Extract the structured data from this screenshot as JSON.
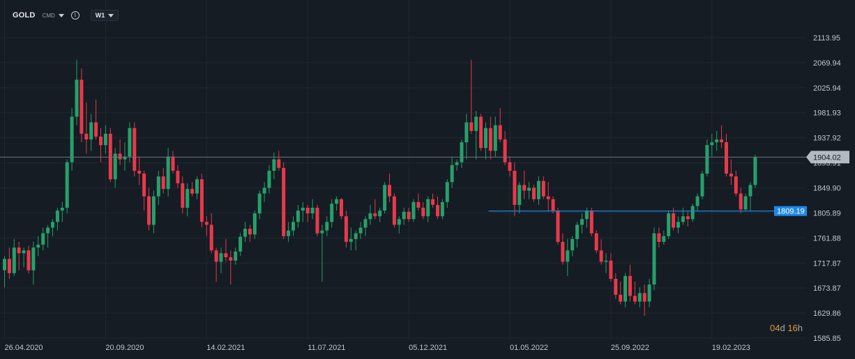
{
  "toolbar": {
    "symbol": "GOLD",
    "source": "CMD",
    "info_icon": "info-icon",
    "timeframe": "W1",
    "dropdown_icon": "chevron-down-icon"
  },
  "countdown": {
    "days": "04",
    "days_unit": "d",
    "hours": "16",
    "hours_unit": "h"
  },
  "colors": {
    "background": "#151c24",
    "grid": "#1f2831",
    "up": "#26a06a",
    "down": "#e8394a",
    "price_line": "#6d7480",
    "level_line": "#1e88e5",
    "label_bg": "#1e88e5",
    "price_tag_bg": "#b4bac2"
  },
  "chart_data": {
    "type": "candlestick",
    "title": "",
    "xlabel": "",
    "ylabel": "",
    "grid": true,
    "ylim": [
      1585.85,
      2113.95
    ],
    "y_ticks": [
      "2113.95",
      "2069.94",
      "2025.94",
      "1981.93",
      "1937.92",
      "1893.91",
      "1849.90",
      "1805.89",
      "1761.88",
      "1717.87",
      "1673.87",
      "1629.86",
      "1585.85"
    ],
    "x_ticks": [
      "26.04.2020",
      "20.09.2020",
      "14.02.2021",
      "11.07.2021",
      "05.12.2021",
      "01.05.2022",
      "25.09.2022",
      "19.02.2023"
    ],
    "x_tick_index": [
      0,
      21,
      42,
      63,
      84,
      105,
      126,
      147
    ],
    "current_price": {
      "value": 1904.02,
      "label": "1904.02"
    },
    "level": {
      "value": 1809.19,
      "label": "1809.19",
      "start_index": 101
    },
    "candles": [
      [
        1705,
        1730,
        1675,
        1725
      ],
      [
        1725,
        1745,
        1690,
        1700
      ],
      [
        1700,
        1760,
        1695,
        1745
      ],
      [
        1745,
        1755,
        1705,
        1735
      ],
      [
        1735,
        1745,
        1710,
        1740
      ],
      [
        1740,
        1748,
        1700,
        1705
      ],
      [
        1705,
        1755,
        1680,
        1745
      ],
      [
        1745,
        1765,
        1730,
        1750
      ],
      [
        1750,
        1780,
        1740,
        1770
      ],
      [
        1770,
        1785,
        1745,
        1780
      ],
      [
        1780,
        1795,
        1765,
        1790
      ],
      [
        1790,
        1815,
        1775,
        1810
      ],
      [
        1810,
        1825,
        1790,
        1815
      ],
      [
        1815,
        1900,
        1805,
        1895
      ],
      [
        1895,
        1990,
        1880,
        1975
      ],
      [
        1975,
        2075,
        1960,
        2040
      ],
      [
        2040,
        2060,
        1930,
        1945
      ],
      [
        1945,
        2000,
        1910,
        1935
      ],
      [
        1935,
        1980,
        1915,
        1965
      ],
      [
        1965,
        2005,
        1935,
        1940
      ],
      [
        1940,
        1955,
        1895,
        1925
      ],
      [
        1925,
        1960,
        1910,
        1945
      ],
      [
        1945,
        1955,
        1860,
        1865
      ],
      [
        1865,
        1920,
        1850,
        1910
      ],
      [
        1910,
        1935,
        1890,
        1900
      ],
      [
        1900,
        1930,
        1880,
        1905
      ],
      [
        1905,
        1965,
        1895,
        1955
      ],
      [
        1955,
        1965,
        1870,
        1880
      ],
      [
        1880,
        1905,
        1855,
        1875
      ],
      [
        1875,
        1880,
        1810,
        1835
      ],
      [
        1835,
        1850,
        1775,
        1785
      ],
      [
        1785,
        1845,
        1770,
        1835
      ],
      [
        1835,
        1880,
        1820,
        1870
      ],
      [
        1870,
        1885,
        1840,
        1848
      ],
      [
        1848,
        1920,
        1835,
        1905
      ],
      [
        1905,
        1915,
        1875,
        1880
      ],
      [
        1880,
        1890,
        1850,
        1858
      ],
      [
        1858,
        1870,
        1805,
        1815
      ],
      [
        1815,
        1858,
        1800,
        1848
      ],
      [
        1848,
        1860,
        1835,
        1840
      ],
      [
        1840,
        1870,
        1830,
        1865
      ],
      [
        1865,
        1875,
        1780,
        1790
      ],
      [
        1790,
        1800,
        1765,
        1785
      ],
      [
        1785,
        1805,
        1735,
        1740
      ],
      [
        1740,
        1745,
        1685,
        1720
      ],
      [
        1720,
        1745,
        1700,
        1735
      ],
      [
        1735,
        1760,
        1720,
        1728
      ],
      [
        1728,
        1740,
        1680,
        1722
      ],
      [
        1722,
        1745,
        1715,
        1738
      ],
      [
        1738,
        1770,
        1730,
        1764
      ],
      [
        1764,
        1790,
        1755,
        1778
      ],
      [
        1778,
        1785,
        1755,
        1768
      ],
      [
        1768,
        1810,
        1760,
        1805
      ],
      [
        1805,
        1845,
        1795,
        1840
      ],
      [
        1840,
        1860,
        1825,
        1850
      ],
      [
        1850,
        1890,
        1840,
        1880
      ],
      [
        1880,
        1912,
        1865,
        1900
      ],
      [
        1900,
        1915,
        1880,
        1885
      ],
      [
        1885,
        1895,
        1760,
        1765
      ],
      [
        1765,
        1790,
        1755,
        1775
      ],
      [
        1775,
        1800,
        1765,
        1790
      ],
      [
        1790,
        1820,
        1780,
        1810
      ],
      [
        1810,
        1825,
        1790,
        1815
      ],
      [
        1815,
        1820,
        1790,
        1805
      ],
      [
        1805,
        1830,
        1795,
        1815
      ],
      [
        1815,
        1820,
        1765,
        1770
      ],
      [
        1770,
        1785,
        1685,
        1775
      ],
      [
        1775,
        1800,
        1765,
        1790
      ],
      [
        1790,
        1830,
        1780,
        1822
      ],
      [
        1822,
        1835,
        1810,
        1830
      ],
      [
        1830,
        1832,
        1795,
        1800
      ],
      [
        1800,
        1810,
        1745,
        1755
      ],
      [
        1755,
        1780,
        1740,
        1760
      ],
      [
        1760,
        1775,
        1740,
        1770
      ],
      [
        1770,
        1790,
        1760,
        1780
      ],
      [
        1780,
        1800,
        1765,
        1795
      ],
      [
        1795,
        1820,
        1785,
        1805
      ],
      [
        1805,
        1830,
        1795,
        1800
      ],
      [
        1800,
        1815,
        1790,
        1810
      ],
      [
        1810,
        1860,
        1805,
        1855
      ],
      [
        1855,
        1875,
        1825,
        1835
      ],
      [
        1835,
        1840,
        1780,
        1785
      ],
      [
        1785,
        1800,
        1770,
        1795
      ],
      [
        1795,
        1815,
        1785,
        1808
      ],
      [
        1808,
        1815,
        1790,
        1795
      ],
      [
        1795,
        1830,
        1790,
        1825
      ],
      [
        1825,
        1840,
        1810,
        1815
      ],
      [
        1815,
        1825,
        1795,
        1800
      ],
      [
        1800,
        1835,
        1790,
        1830
      ],
      [
        1830,
        1840,
        1815,
        1820
      ],
      [
        1820,
        1835,
        1795,
        1800
      ],
      [
        1800,
        1830,
        1795,
        1825
      ],
      [
        1825,
        1865,
        1815,
        1860
      ],
      [
        1860,
        1905,
        1850,
        1890
      ],
      [
        1890,
        1900,
        1880,
        1895
      ],
      [
        1895,
        1935,
        1885,
        1930
      ],
      [
        1930,
        1980,
        1900,
        1965
      ],
      [
        1965,
        2075,
        1945,
        1950
      ],
      [
        1950,
        1985,
        1900,
        1975
      ],
      [
        1975,
        1980,
        1915,
        1920
      ],
      [
        1920,
        1965,
        1900,
        1955
      ],
      [
        1955,
        1975,
        1900,
        1915
      ],
      [
        1915,
        1975,
        1905,
        1960
      ],
      [
        1960,
        1990,
        1930,
        1935
      ],
      [
        1935,
        1950,
        1890,
        1895
      ],
      [
        1895,
        1905,
        1870,
        1880
      ],
      [
        1880,
        1895,
        1800,
        1820
      ],
      [
        1820,
        1860,
        1805,
        1855
      ],
      [
        1855,
        1880,
        1830,
        1845
      ],
      [
        1845,
        1860,
        1830,
        1850
      ],
      [
        1850,
        1855,
        1825,
        1830
      ],
      [
        1830,
        1870,
        1820,
        1862
      ],
      [
        1862,
        1870,
        1830,
        1835
      ],
      [
        1835,
        1860,
        1810,
        1830
      ],
      [
        1830,
        1835,
        1805,
        1810
      ],
      [
        1810,
        1815,
        1750,
        1755
      ],
      [
        1755,
        1770,
        1715,
        1720
      ],
      [
        1720,
        1760,
        1695,
        1740
      ],
      [
        1740,
        1765,
        1730,
        1760
      ],
      [
        1760,
        1790,
        1745,
        1785
      ],
      [
        1785,
        1805,
        1770,
        1795
      ],
      [
        1795,
        1815,
        1780,
        1810
      ],
      [
        1810,
        1815,
        1765,
        1770
      ],
      [
        1770,
        1775,
        1735,
        1740
      ],
      [
        1740,
        1760,
        1715,
        1720
      ],
      [
        1720,
        1735,
        1700,
        1722
      ],
      [
        1722,
        1735,
        1685,
        1690
      ],
      [
        1690,
        1700,
        1655,
        1662
      ],
      [
        1662,
        1685,
        1645,
        1650
      ],
      [
        1650,
        1700,
        1640,
        1695
      ],
      [
        1695,
        1715,
        1650,
        1660
      ],
      [
        1660,
        1685,
        1645,
        1650
      ],
      [
        1650,
        1675,
        1640,
        1665
      ],
      [
        1665,
        1680,
        1625,
        1650
      ],
      [
        1650,
        1690,
        1640,
        1680
      ],
      [
        1680,
        1780,
        1670,
        1770
      ],
      [
        1770,
        1780,
        1745,
        1755
      ],
      [
        1755,
        1775,
        1750,
        1765
      ],
      [
        1765,
        1810,
        1760,
        1805
      ],
      [
        1805,
        1815,
        1775,
        1780
      ],
      [
        1780,
        1800,
        1770,
        1790
      ],
      [
        1790,
        1815,
        1785,
        1800
      ],
      [
        1800,
        1808,
        1782,
        1795
      ],
      [
        1795,
        1822,
        1790,
        1818
      ],
      [
        1818,
        1840,
        1810,
        1835
      ],
      [
        1835,
        1880,
        1830,
        1875
      ],
      [
        1875,
        1935,
        1870,
        1925
      ],
      [
        1925,
        1945,
        1905,
        1930
      ],
      [
        1930,
        1950,
        1915,
        1935
      ],
      [
        1935,
        1960,
        1920,
        1930
      ],
      [
        1930,
        1945,
        1870,
        1875
      ],
      [
        1875,
        1900,
        1855,
        1870
      ],
      [
        1870,
        1880,
        1835,
        1840
      ],
      [
        1840,
        1850,
        1805,
        1812
      ],
      [
        1812,
        1840,
        1810,
        1835
      ],
      [
        1835,
        1860,
        1810,
        1855
      ],
      [
        1855,
        1908,
        1850,
        1904.02
      ]
    ]
  }
}
